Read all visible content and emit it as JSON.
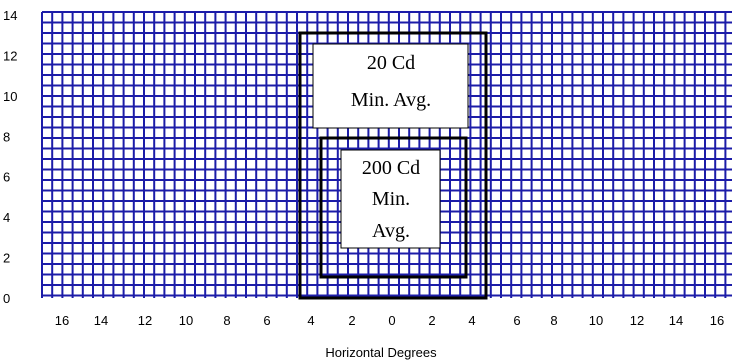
{
  "chart_data": {
    "type": "diagram",
    "xlabel": "Horizontal Degrees",
    "ylabel": "",
    "x_ticks": [
      "16",
      "14",
      "12",
      "10",
      "8",
      "6",
      "4",
      "2",
      "0",
      "2",
      "4",
      "6",
      "8",
      "10",
      "12",
      "14",
      "16"
    ],
    "y_ticks": [
      "14",
      "12",
      "10",
      "8",
      "6",
      "4",
      "2",
      "0"
    ],
    "grid": true,
    "grid_color": "#1c1ca8",
    "zones": [
      {
        "name": "outer-zone",
        "label_lines": [
          "20 Cd",
          "Min. Avg."
        ],
        "x_range_deg": [
          -4.5,
          4.5
        ],
        "y_range_deg": [
          0,
          13
        ]
      },
      {
        "name": "inner-zone",
        "label_lines": [
          "200 Cd",
          "Min.",
          "Avg."
        ],
        "x_range_deg": [
          -3.5,
          3.5
        ],
        "y_range_deg": [
          1,
          8
        ]
      }
    ]
  }
}
